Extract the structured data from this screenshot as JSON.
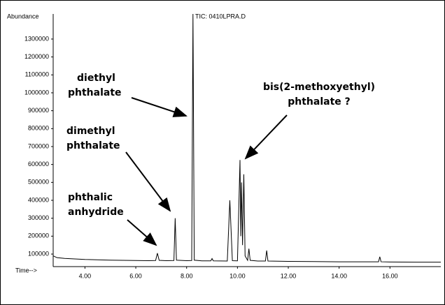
{
  "chart_data": {
    "type": "line",
    "title": "TIC: 0410LPRA.D",
    "y_label": "Abundance",
    "x_label": "Time-->",
    "xlim": [
      2.75,
      18
    ],
    "xticks": [
      {
        "value": 4,
        "label": "4.00"
      },
      {
        "value": 6,
        "label": "6.00"
      },
      {
        "value": 8,
        "label": "8.00"
      },
      {
        "value": 10,
        "label": "10.00"
      },
      {
        "value": 12,
        "label": "12.00"
      },
      {
        "value": 14,
        "label": "14.00"
      },
      {
        "value": 16,
        "label": "16.00"
      }
    ],
    "ylim": [
      30000,
      1440000
    ],
    "yticks": [
      100000,
      200000,
      300000,
      400000,
      500000,
      600000,
      700000,
      800000,
      900000,
      1000000,
      1100000,
      1200000,
      1300000
    ],
    "color": "#000000",
    "x": [
      2.75,
      2.9,
      3.2,
      3.6,
      4.0,
      4.5,
      5.0,
      5.5,
      6.0,
      6.5,
      6.78,
      6.85,
      6.92,
      7.2,
      7.5,
      7.55,
      7.6,
      8.0,
      8.2,
      8.25,
      8.3,
      8.6,
      8.95,
      9.0,
      9.05,
      9.6,
      9.7,
      9.8,
      10.0,
      10.1,
      10.13,
      10.16,
      10.2,
      10.25,
      10.3,
      10.4,
      10.45,
      10.5,
      10.8,
      11.1,
      11.15,
      11.2,
      12.0,
      13.0,
      14.0,
      15.0,
      15.55,
      15.6,
      15.65,
      16.0,
      17.0,
      18.0
    ],
    "values": [
      90000,
      80000,
      76000,
      73000,
      70000,
      68000,
      66000,
      65000,
      64000,
      63000,
      64000,
      105000,
      65000,
      63000,
      64000,
      300000,
      66000,
      63000,
      64000,
      1440000,
      66000,
      62000,
      62000,
      75000,
      62000,
      61000,
      400000,
      63000,
      62000,
      625000,
      200000,
      500000,
      150000,
      545000,
      90000,
      65000,
      130000,
      65000,
      61000,
      61000,
      120000,
      61000,
      59000,
      58000,
      57000,
      57000,
      57000,
      85000,
      57000,
      56000,
      55000,
      55000
    ],
    "annotations": [
      {
        "lines": [
          "diethyl",
          "phthalate"
        ]
      },
      {
        "lines": [
          "dimethyl",
          "phthalate"
        ]
      },
      {
        "lines": [
          "phthalic",
          "anhydride"
        ]
      },
      {
        "lines": [
          "bis(2-methoxyethyl)",
          "phthalate ?"
        ]
      }
    ]
  }
}
